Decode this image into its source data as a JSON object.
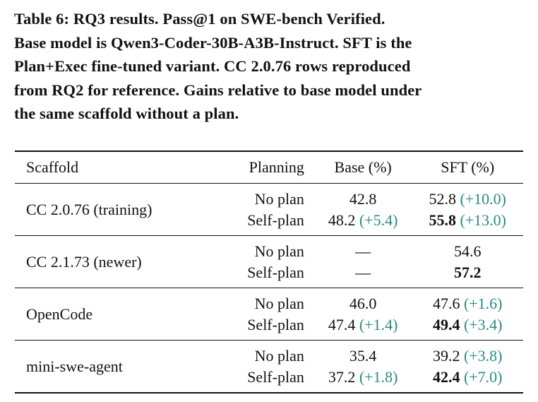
{
  "caption": {
    "lines": [
      "Table 6: RQ3 results. Pass@1 on SWE-bench Verified.",
      "Base model is Qwen3-Coder-30B-A3B-Instruct. SFT is the",
      "Plan+Exec fine-tuned variant. CC 2.0.76 rows reproduced",
      "from RQ2 for reference. Gains relative to base model under",
      "the same scaffold without a plan."
    ]
  },
  "table": {
    "headers": {
      "scaffold": "Scaffold",
      "planning": "Planning",
      "base": "Base (%)",
      "sft": "SFT (%)"
    },
    "groups": [
      {
        "scaffold": "CC 2.0.76 (training)",
        "rows": [
          {
            "planning": "No plan",
            "base_value": "42.8",
            "base_gain": "",
            "sft_value": "52.8",
            "sft_gain": "(+10.0)"
          },
          {
            "planning": "Self-plan",
            "base_value": "48.2",
            "base_gain": "(+5.4)",
            "sft_value": "55.8",
            "sft_gain": "(+13.0)"
          }
        ]
      },
      {
        "scaffold": "CC 2.1.73 (newer)",
        "rows": [
          {
            "planning": "No plan",
            "base_value": "—",
            "base_gain": "",
            "sft_value": "54.6",
            "sft_gain": ""
          },
          {
            "planning": "Self-plan",
            "base_value": "—",
            "base_gain": "",
            "sft_value": "57.2",
            "sft_gain": ""
          }
        ]
      },
      {
        "scaffold": "OpenCode",
        "rows": [
          {
            "planning": "No plan",
            "base_value": "46.0",
            "base_gain": "",
            "sft_value": "47.6",
            "sft_gain": "(+1.6)"
          },
          {
            "planning": "Self-plan",
            "base_value": "47.4",
            "base_gain": "(+1.4)",
            "sft_value": "49.4",
            "sft_gain": "(+3.4)"
          }
        ]
      },
      {
        "scaffold": "mini-swe-agent",
        "rows": [
          {
            "planning": "No plan",
            "base_value": "35.4",
            "base_gain": "",
            "sft_value": "39.2",
            "sft_gain": "(+3.8)"
          },
          {
            "planning": "Self-plan",
            "base_value": "37.2",
            "base_gain": "(+1.8)",
            "sft_value": "42.4",
            "sft_gain": "(+7.0)"
          }
        ]
      }
    ]
  },
  "colors": {
    "gain_text": "#2a8a86",
    "text": "#111111"
  }
}
